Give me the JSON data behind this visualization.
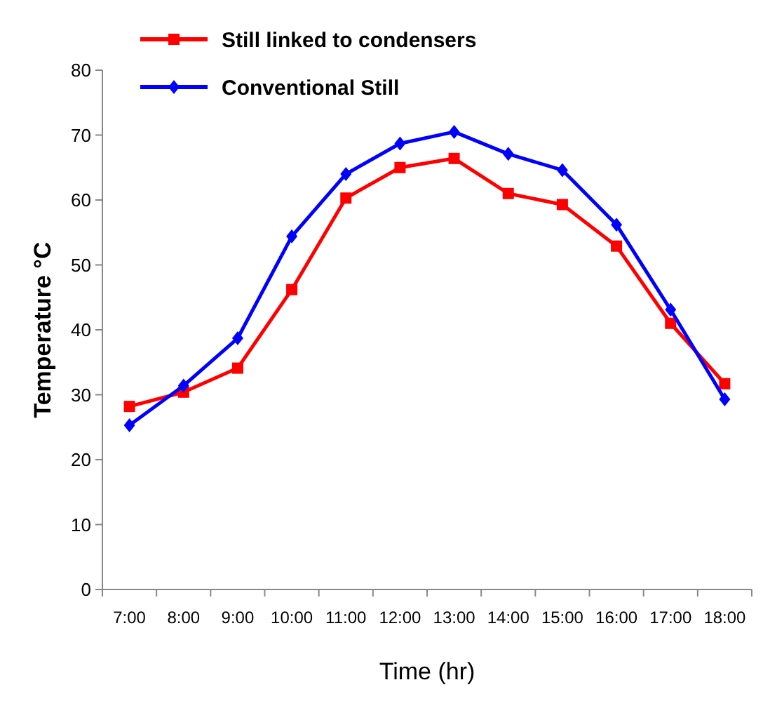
{
  "chart_data": {
    "type": "line",
    "xlabel": "Time (hr)",
    "ylabel": "Temperature °C",
    "categories": [
      "7:00",
      "8:00",
      "9:00",
      "10:00",
      "11:00",
      "12:00",
      "13:00",
      "14:00",
      "15:00",
      "16:00",
      "17:00",
      "18:00"
    ],
    "series": [
      {
        "name": "Still linked to condensers",
        "color": "#ff0000",
        "marker": "square",
        "values": [
          28.2,
          30.4,
          34.1,
          46.2,
          60.3,
          65.0,
          66.4,
          61.0,
          59.3,
          52.9,
          41.0,
          31.7
        ]
      },
      {
        "name": "Conventional Still",
        "color": "#0000ff",
        "marker": "diamond",
        "values": [
          25.3,
          31.4,
          38.7,
          54.4,
          64.0,
          68.7,
          70.5,
          67.1,
          64.6,
          56.2,
          43.1,
          29.3
        ]
      }
    ],
    "ylim": [
      0,
      80
    ],
    "yticks": [
      0,
      10,
      20,
      30,
      40,
      50,
      60,
      70,
      80
    ],
    "grid": false,
    "legend": "top left",
    "line_style": "solid"
  }
}
